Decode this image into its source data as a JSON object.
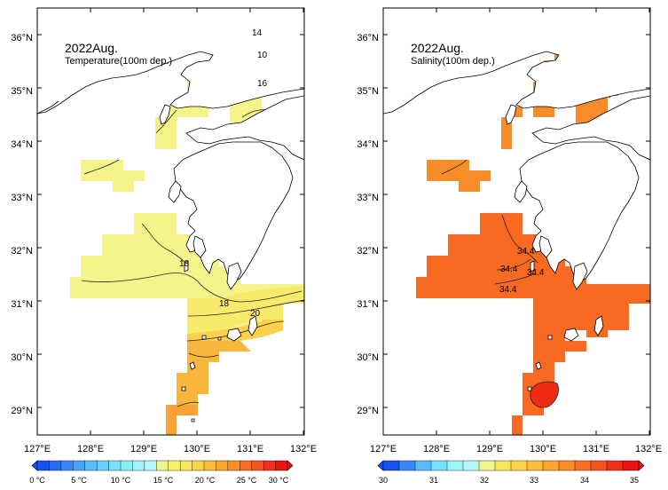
{
  "maps": [
    {
      "id": "temperature",
      "title": "2022Aug.",
      "subtitle": "Temperature(100m dep.)",
      "lon_ticks": [
        "127°E",
        "128°E",
        "129°E",
        "130°E",
        "131°E",
        "132°E"
      ],
      "lat_ticks": [
        "29°N",
        "30°N",
        "31°N",
        "32°N",
        "33°N",
        "34°N",
        "35°N",
        "36°N"
      ],
      "contour_labels": [
        "14",
        "10",
        "16",
        "18",
        "18",
        "20"
      ],
      "colorbar": {
        "labels": [
          "0 °C",
          "5 °C",
          "10 °C",
          "15 °C",
          "20 °C",
          "25 °C",
          "30 °C"
        ],
        "colors": [
          "#1a50f0",
          "#2a6cf5",
          "#3a88f8",
          "#4aa2fb",
          "#58bcfd",
          "#66d2fe",
          "#76e2fe",
          "#88eefc",
          "#9ef4fa",
          "#b6f8f8",
          "#eef690",
          "#f6f26e",
          "#fae65a",
          "#fcd448",
          "#fcbe3c",
          "#fca632",
          "#fa8c2a",
          "#f87024",
          "#f4541e",
          "#f03018",
          "#e81414"
        ]
      }
    },
    {
      "id": "salinity",
      "title": "2022Aug.",
      "subtitle": "Salinity(100m dep.)",
      "lon_ticks": [
        "127°E",
        "128°E",
        "129°E",
        "130°E",
        "131°E",
        "132°E"
      ],
      "lat_ticks": [
        "29°N",
        "30°N",
        "31°N",
        "32°N",
        "33°N",
        "34°N",
        "35°N",
        "36°N"
      ],
      "contour_labels": [
        "34.4",
        "34.4",
        "34.4",
        "34.4"
      ],
      "colorbar": {
        "labels": [
          "30",
          "31",
          "32",
          "33",
          "34",
          "35"
        ],
        "colors": [
          "#1a50f0",
          "#3a88f8",
          "#58bcfd",
          "#76e2fe",
          "#9ef4fa",
          "#b6f8f8",
          "#eef690",
          "#fae65a",
          "#fcd448",
          "#fcbe3c",
          "#fca632",
          "#fa8c2a",
          "#f87024",
          "#f4541e",
          "#f03018",
          "#e81414"
        ]
      }
    }
  ],
  "fills": {
    "temp_cool_1": "#8ff0f6",
    "temp_cool_2": "#b4f6f6",
    "temp_warm_1": "#f4f48a",
    "temp_warm_2": "#f8ea6a",
    "temp_warm_3": "#fcd04c",
    "temp_warm_4": "#f9b63c",
    "temp_warm_5": "#f6a236",
    "sal_main": "#f86a22",
    "sal_north": "#f68c2a",
    "sal_high": "#ee2c14"
  }
}
